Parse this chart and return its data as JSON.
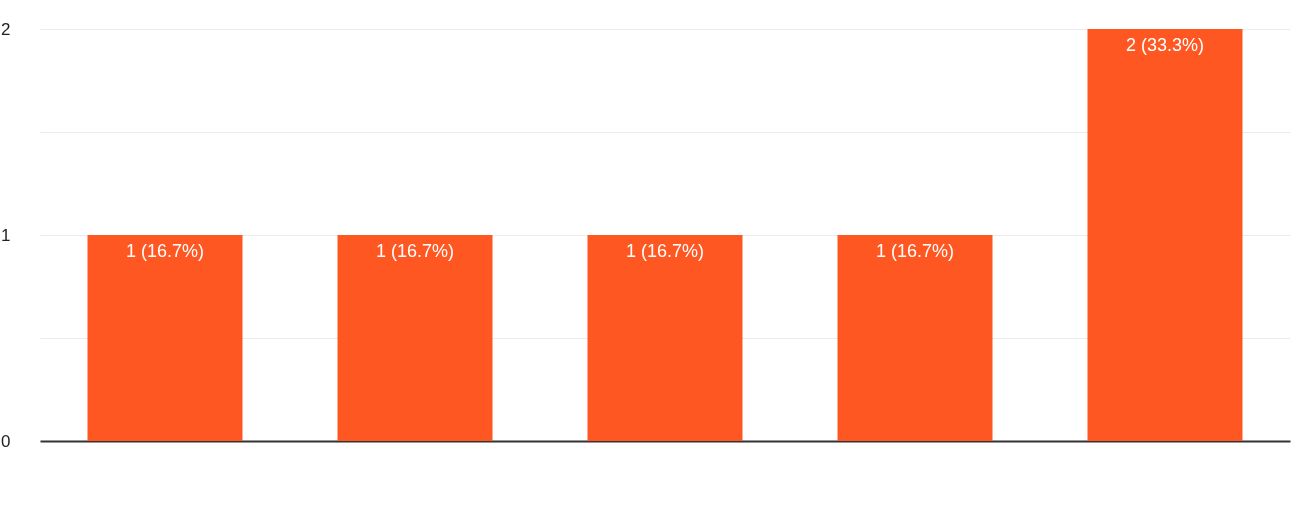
{
  "chart_data": {
    "type": "bar",
    "categories": [
      null,
      null,
      null,
      null,
      null
    ],
    "values": [
      1,
      1,
      1,
      1,
      2
    ],
    "value_labels": [
      "1 (16.7%)",
      "1 (16.7%)",
      "1 (16.7%)",
      "1 (16.7%)",
      "2 (33.3%)"
    ],
    "color": "#ff5722",
    "ylim": [
      0,
      2
    ],
    "yticks": [
      0,
      {
        "value": 0.5,
        "label": null
      },
      1,
      {
        "value": 1.5,
        "label": null
      },
      2
    ],
    "grid": "y"
  }
}
